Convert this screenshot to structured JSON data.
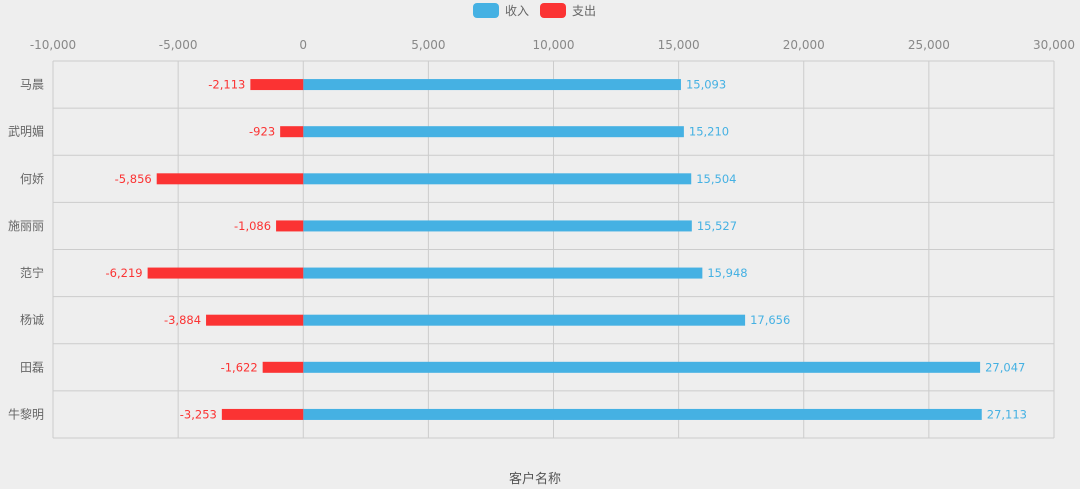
{
  "chart_data": {
    "type": "bar",
    "orientation": "horizontal",
    "stacked": true,
    "categories": [
      "马晨",
      "武明媚",
      "何娇",
      "施丽丽",
      "范宁",
      "杨诚",
      "田磊",
      "牛黎明"
    ],
    "series": [
      {
        "name": "收入",
        "color": "#45b1e3",
        "values": [
          15093,
          15210,
          15504,
          15527,
          15948,
          17656,
          27047,
          27113
        ]
      },
      {
        "name": "支出",
        "color": "#fb3333",
        "values": [
          -2113,
          -923,
          -5856,
          -1086,
          -6219,
          -3884,
          -1622,
          -3253
        ]
      }
    ],
    "xlim": [
      -10000,
      30000
    ],
    "xticks": [
      -10000,
      -5000,
      0,
      5000,
      10000,
      15000,
      20000,
      25000,
      30000
    ],
    "xtick_labels": [
      "-10,000",
      "-5,000",
      "0",
      "5,000",
      "10,000",
      "15,000",
      "20,000",
      "25,000",
      "30,000"
    ],
    "xlabel": "客户名称",
    "ylabel": "",
    "title": "",
    "grid": true,
    "legend": "top-center",
    "data_labels": true
  }
}
